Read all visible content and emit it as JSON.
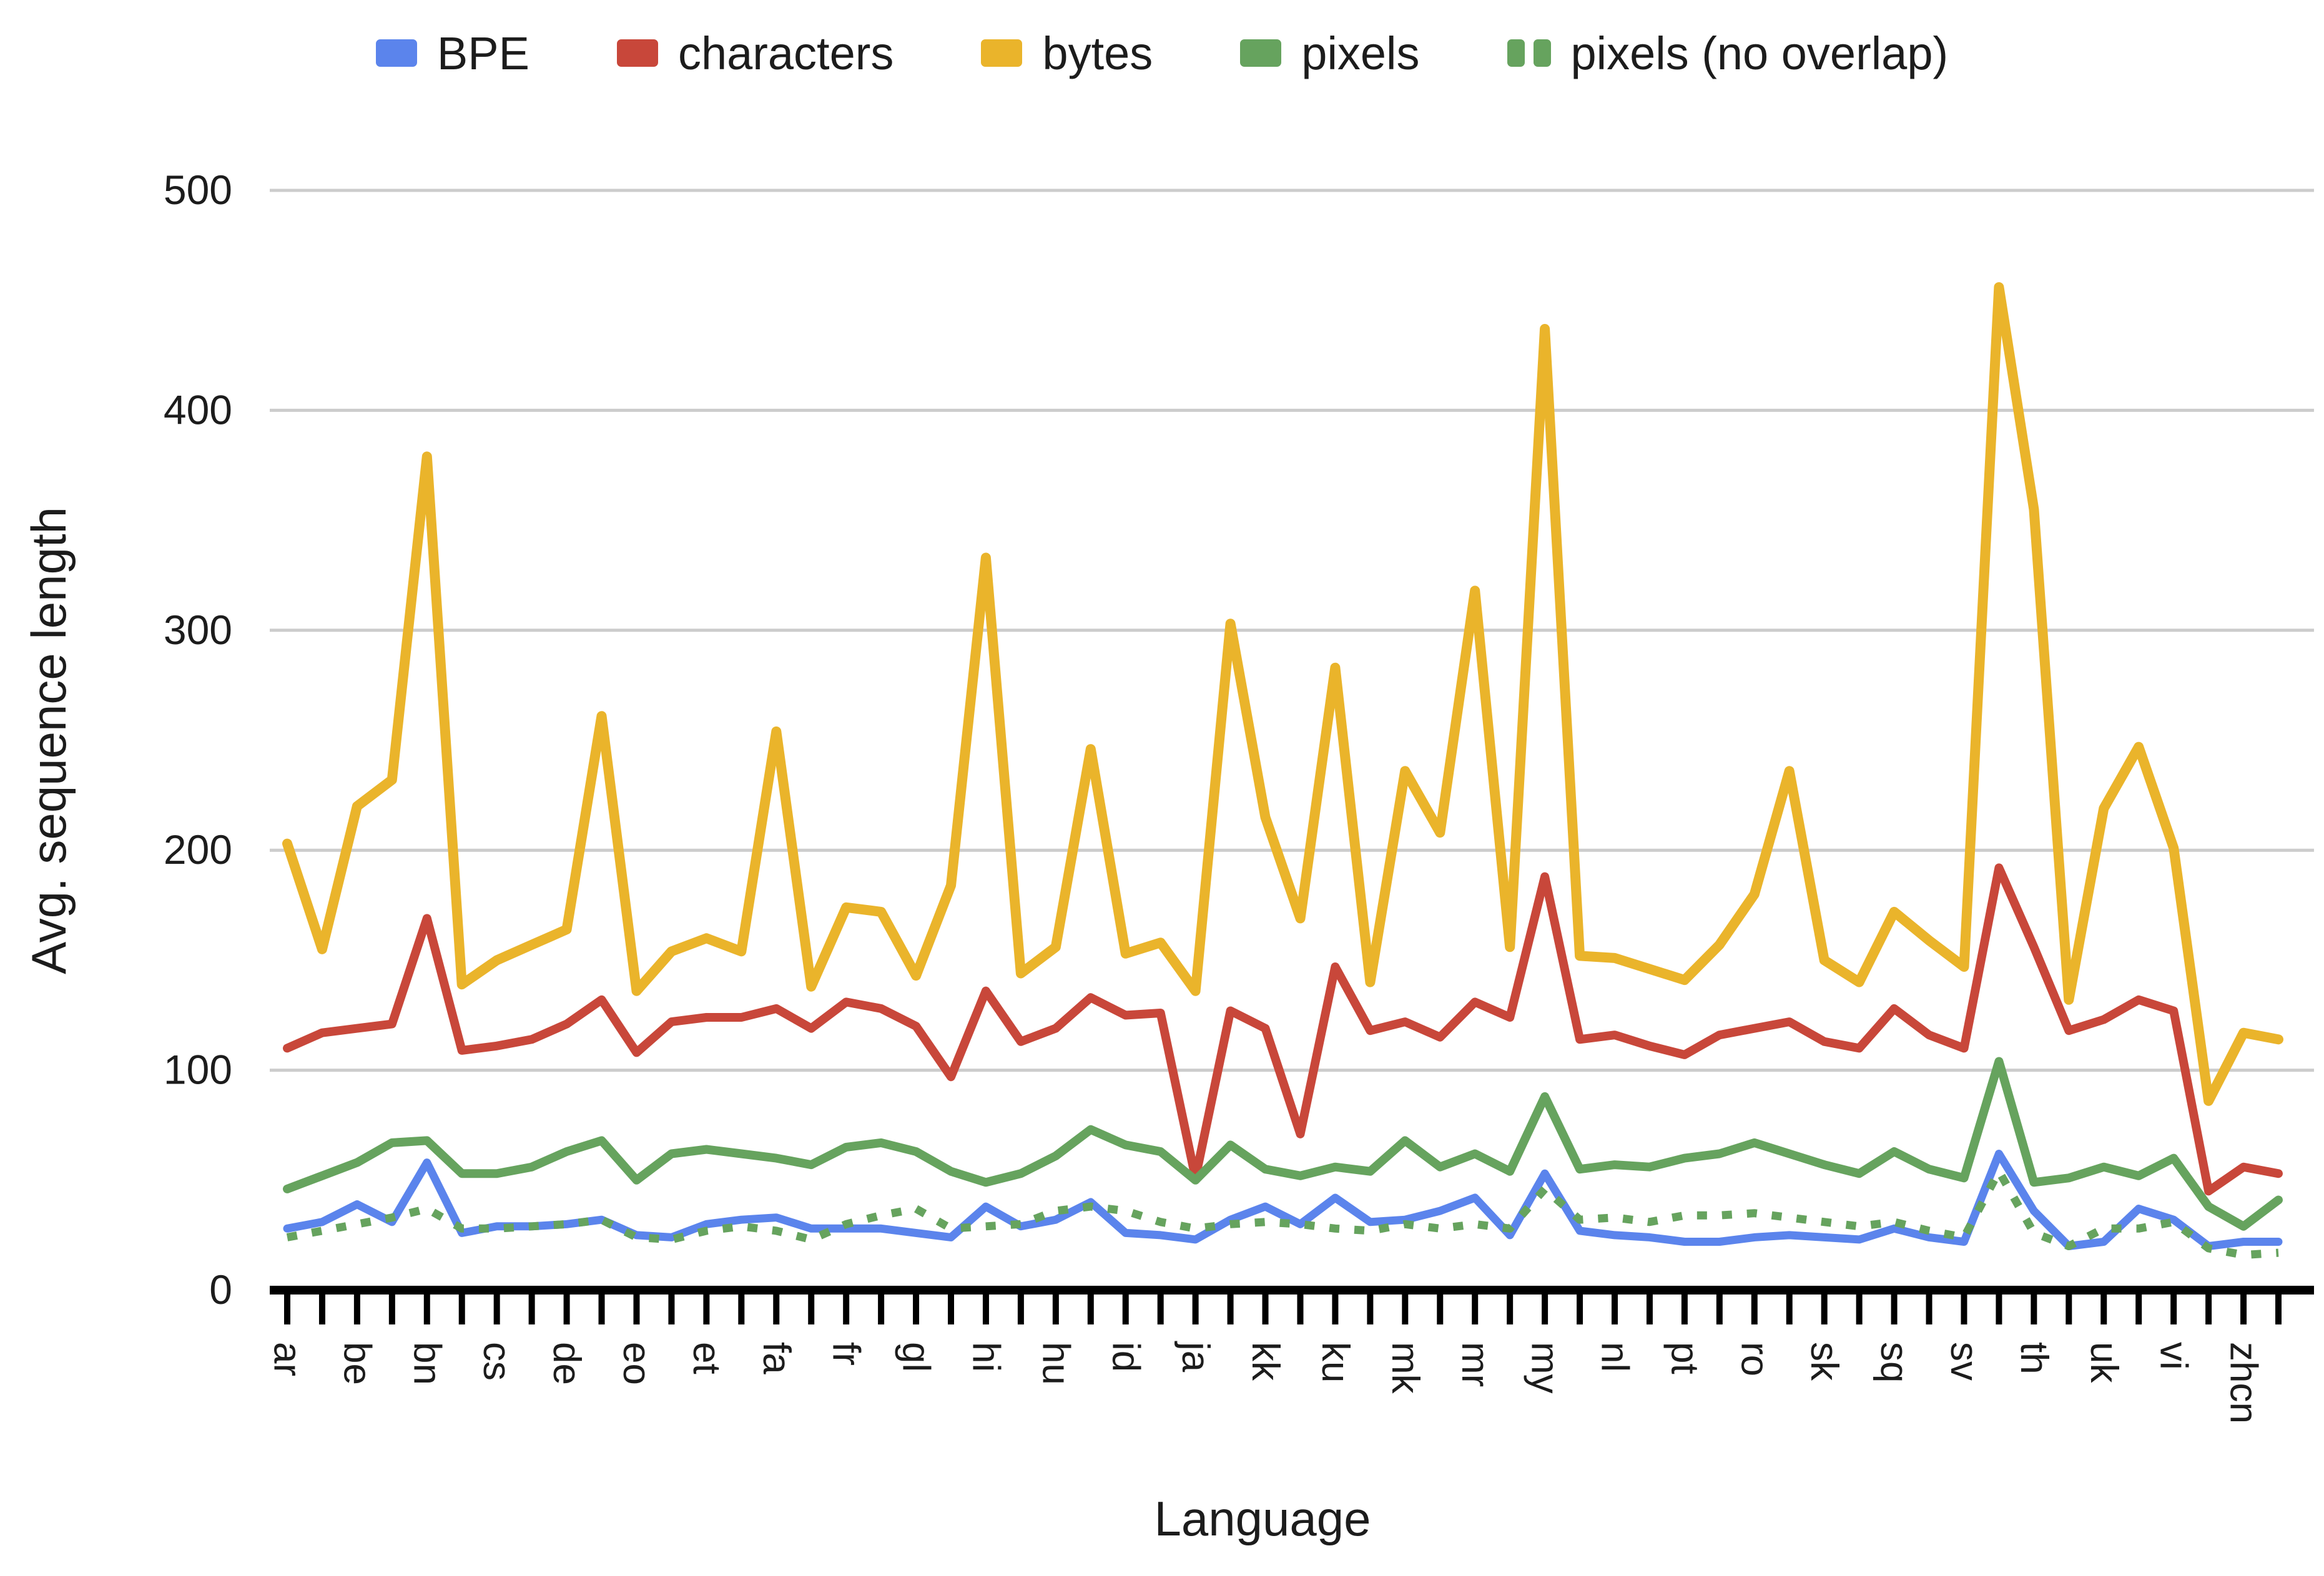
{
  "legend": {
    "position": "top",
    "items": [
      {
        "label": "BPE",
        "color": "#5B84EC",
        "style": "solid"
      },
      {
        "label": "characters",
        "color": "#C8473A",
        "style": "solid"
      },
      {
        "label": "bytes",
        "color": "#EAB42B",
        "style": "solid"
      },
      {
        "label": "pixels",
        "color": "#66A35E",
        "style": "solid"
      },
      {
        "label": "pixels (no overlap)",
        "color": "#66A35E",
        "style": "dashed"
      }
    ]
  },
  "axes": {
    "y_title": "Avg. sequence length",
    "x_title": "Language",
    "y_ticks": [
      0,
      100,
      200,
      300,
      400,
      500
    ],
    "grid_color": "#cccccc",
    "axis_color": "#000000",
    "text_color": "#1c1c1c"
  },
  "chart_data": {
    "type": "line",
    "title": "",
    "xlabel": "Language",
    "ylabel": "Avg. sequence length",
    "ylim": [
      0,
      500
    ],
    "grid": true,
    "legend_position": "top",
    "note_visible_labels": "58 ticks; every second tick labeled (29 labels shown); unlabeled ticks are empty strings",
    "categories": [
      "ar",
      "",
      "be",
      "",
      "bn",
      "",
      "cs",
      "",
      "de",
      "",
      "eo",
      "",
      "et",
      "",
      "fa",
      "",
      "fr",
      "",
      "gl",
      "",
      "hi",
      "",
      "hu",
      "",
      "id",
      "",
      "ja",
      "",
      "kk",
      "",
      "ku",
      "",
      "mk",
      "",
      "mr",
      "",
      "my",
      "",
      "nl",
      "",
      "pt",
      "",
      "ro",
      "",
      "sk",
      "",
      "sq",
      "",
      "sv",
      "",
      "th",
      "",
      "uk",
      "",
      "vi",
      "",
      "zhcn",
      ""
    ],
    "series": [
      {
        "name": "BPE",
        "color": "#5B84EC",
        "dashed": false,
        "width": 13,
        "values": [
          28,
          31,
          39,
          31,
          58,
          26,
          29,
          29,
          30,
          32,
          25,
          24,
          30,
          32,
          33,
          28,
          28,
          28,
          26,
          24,
          38,
          29,
          32,
          40,
          26,
          25,
          23,
          32,
          38,
          30,
          42,
          31,
          32,
          36,
          42,
          25,
          53,
          27,
          25,
          24,
          22,
          22,
          24,
          25,
          24,
          23,
          28,
          24,
          22,
          62,
          36,
          20,
          22,
          37,
          32,
          20,
          22,
          22
        ]
      },
      {
        "name": "characters",
        "color": "#C8473A",
        "dashed": false,
        "width": 14,
        "values": [
          110,
          117,
          119,
          121,
          169,
          109,
          111,
          114,
          121,
          132,
          108,
          122,
          124,
          124,
          128,
          119,
          131,
          128,
          120,
          97,
          136,
          113,
          119,
          133,
          125,
          126,
          51,
          127,
          119,
          71,
          147,
          118,
          122,
          115,
          131,
          124,
          188,
          114,
          116,
          111,
          107,
          116,
          119,
          122,
          113,
          110,
          128,
          116,
          110,
          192,
          156,
          118,
          123,
          132,
          127,
          45,
          56,
          53
        ]
      },
      {
        "name": "bytes",
        "color": "#EAB42B",
        "dashed": false,
        "width": 16,
        "values": [
          203,
          155,
          220,
          232,
          379,
          139,
          150,
          157,
          164,
          261,
          136,
          154,
          160,
          154,
          254,
          138,
          174,
          172,
          143,
          184,
          333,
          144,
          156,
          246,
          153,
          158,
          136,
          303,
          215,
          169,
          283,
          140,
          236,
          208,
          318,
          156,
          437,
          152,
          151,
          146,
          141,
          157,
          180,
          236,
          150,
          140,
          172,
          159,
          147,
          456,
          355,
          132,
          219,
          247,
          201,
          86,
          117,
          114
        ]
      },
      {
        "name": "pixels",
        "color": "#66A35E",
        "dashed": false,
        "width": 14,
        "values": [
          46,
          52,
          58,
          67,
          68,
          53,
          53,
          56,
          63,
          68,
          50,
          62,
          64,
          62,
          60,
          57,
          65,
          67,
          63,
          54,
          49,
          53,
          61,
          73,
          66,
          63,
          50,
          66,
          55,
          52,
          56,
          54,
          68,
          56,
          62,
          54,
          88,
          55,
          57,
          56,
          60,
          62,
          67,
          62,
          57,
          53,
          63,
          55,
          51,
          104,
          49,
          51,
          56,
          52,
          60,
          38,
          29,
          41
        ]
      },
      {
        "name": "pixels (no overlap)",
        "color": "#66A35E",
        "dashed": true,
        "width": 13,
        "values": [
          24,
          27,
          30,
          33,
          37,
          28,
          28,
          29,
          30,
          32,
          24,
          23,
          27,
          29,
          27,
          23,
          30,
          34,
          37,
          28,
          29,
          30,
          36,
          38,
          36,
          31,
          28,
          30,
          31,
          30,
          28,
          27,
          30,
          28,
          30,
          28,
          46,
          32,
          33,
          31,
          34,
          34,
          35,
          33,
          31,
          29,
          31,
          27,
          24,
          54,
          26,
          20,
          28,
          28,
          31,
          19,
          16,
          17
        ]
      }
    ]
  }
}
